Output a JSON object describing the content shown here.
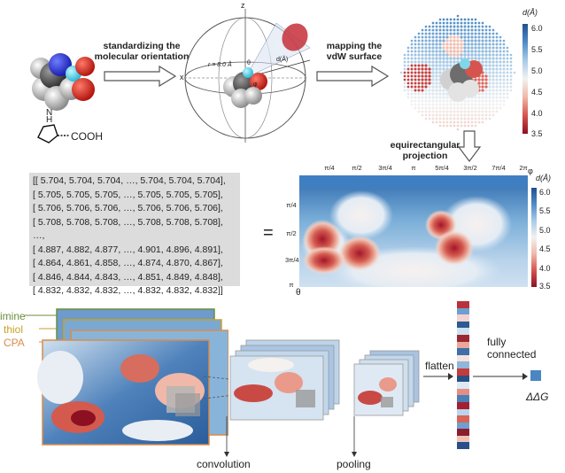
{
  "top": {
    "step1_label": "standardizing the\nmolecular orientation",
    "step2_label": "mapping the\nvdW surface",
    "step3_label": "equirectangular\nprojection",
    "molecule_label": "COOH",
    "nh_label": "N\nH",
    "sphere_axis_z": "z",
    "sphere_axis_x": "x",
    "sphere_r": "r = 8.0 Å",
    "sphere_d": "d(Å)",
    "sphere_theta": "θ",
    "sphere_phi": "φ"
  },
  "colorbar_top": {
    "title": "d(Å)",
    "ticks": [
      "6.0",
      "5.5",
      "5.0",
      "4.5",
      "4.0",
      "3.5"
    ]
  },
  "matrix": {
    "rows": [
      "[[ 5.704, 5.704, 5.704, …, 5.704, 5.704, 5.704],",
      " [ 5.705, 5.705, 5.705, …, 5.705, 5.705, 5.705],",
      " [ 5.706, 5.706, 5.706, …, 5.706, 5.706, 5.706],",
      " [ 5.708, 5.708, 5.708, …, 5.708, 5.708, 5.708],",
      "  …,",
      " [ 4.887, 4.882, 4.877, …, 4.901, 4.896, 4.891],",
      " [ 4.864, 4.861, 4.858, …, 4.874, 4.870, 4.867],",
      " [ 4.846, 4.844, 4.843, …, 4.851, 4.849, 4.848],",
      " [ 4.832, 4.832, 4.832, …, 4.832, 4.832, 4.832]]"
    ],
    "equals": "="
  },
  "projection": {
    "top_ticks": [
      "π/4",
      "π/2",
      "3π/4",
      "π",
      "5π/4",
      "3π/2",
      "7π/4",
      "2π"
    ],
    "left_ticks": [
      "π/4",
      "π/2",
      "3π/4",
      "π"
    ],
    "phi_label": "φ",
    "theta_label": "θ",
    "colorbar_title": "d(Å)",
    "colorbar_ticks": [
      "6.0",
      "5.5",
      "5.0",
      "4.5",
      "4.0",
      "3.5"
    ]
  },
  "cnn": {
    "legend": [
      {
        "label": "imine",
        "color": "#6b8e3e"
      },
      {
        "label": "thiol",
        "color": "#c9a227"
      },
      {
        "label": "CPA",
        "color": "#d98c4a"
      }
    ],
    "convolution_label": "convolution",
    "pooling_label": "pooling",
    "flatten_label": "flatten",
    "fully_connected_label": "fully\nconnected",
    "output_label": "ΔΔG",
    "flatten_colors": [
      "#b8323c",
      "#6f9fcf",
      "#f3d3cf",
      "#2b5b92",
      "#cfe0ef",
      "#9c2734",
      "#e9a89a",
      "#3d6fa8",
      "#f6e2dc",
      "#8fb6db",
      "#c43b3b",
      "#2a4f84",
      "#ddeaf4",
      "#e58e84",
      "#4a7fb7",
      "#a51f33",
      "#bcd5ea",
      "#d96457",
      "#6f9fcf",
      "#8c1d2e",
      "#f0c3b8",
      "#27508a"
    ],
    "output_color": "#4a86c2"
  }
}
